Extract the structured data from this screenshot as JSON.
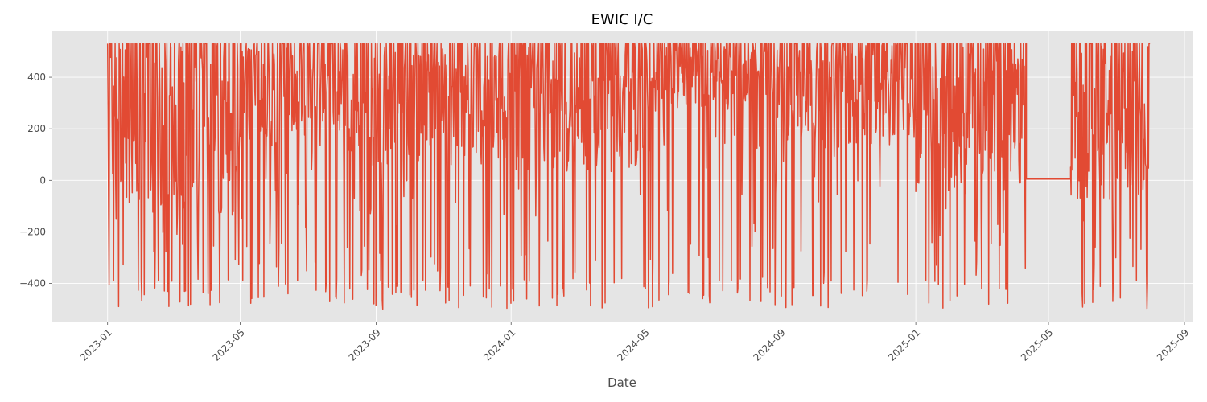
{
  "chart_data": {
    "type": "line",
    "title": "EWIC I/C",
    "xlabel": "Date",
    "ylabel": "",
    "x_type": "date",
    "xlim": [
      "2022-11-12",
      "2025-09-09"
    ],
    "ylim": [
      -548,
      578
    ],
    "x_ticks": [
      {
        "value": "2023-01-01",
        "label": "2023-01"
      },
      {
        "value": "2023-05-01",
        "label": "2023-05"
      },
      {
        "value": "2023-09-01",
        "label": "2023-09"
      },
      {
        "value": "2024-01-01",
        "label": "2024-01"
      },
      {
        "value": "2024-05-01",
        "label": "2024-05"
      },
      {
        "value": "2024-09-01",
        "label": "2024-09"
      },
      {
        "value": "2025-01-01",
        "label": "2025-01"
      },
      {
        "value": "2025-05-01",
        "label": "2025-05"
      },
      {
        "value": "2025-09-01",
        "label": "2025-09"
      }
    ],
    "y_ticks": [
      {
        "value": -400,
        "label": "−400"
      },
      {
        "value": -200,
        "label": "−200"
      },
      {
        "value": 0,
        "label": "0"
      },
      {
        "value": 200,
        "label": "200"
      },
      {
        "value": 400,
        "label": "400"
      }
    ],
    "grid": true,
    "colors": {
      "background": "#e5e5e5",
      "grid": "#ffffff",
      "line": "#e24a33"
    },
    "series": [
      {
        "name": "",
        "envelope": [
          {
            "start": "2023-01-01",
            "end": "2023-04-30",
            "high": 530,
            "low": -500,
            "mid": 60
          },
          {
            "start": "2023-05-01",
            "end": "2023-08-31",
            "high": 530,
            "low": -500,
            "mid": 230
          },
          {
            "start": "2023-09-01",
            "end": "2023-12-31",
            "high": 530,
            "low": -500,
            "mid": 200
          },
          {
            "start": "2024-01-01",
            "end": "2024-04-30",
            "high": 530,
            "low": -500,
            "mid": 180
          },
          {
            "start": "2024-05-01",
            "end": "2024-08-31",
            "high": 530,
            "low": -500,
            "mid": 350
          },
          {
            "start": "2024-09-01",
            "end": "2024-12-31",
            "high": 530,
            "low": -500,
            "mid": 250
          },
          {
            "start": "2025-01-01",
            "end": "2025-04-10",
            "high": 530,
            "low": -500,
            "mid": 120
          },
          {
            "start": "2025-04-11",
            "end": "2025-05-20",
            "high": 5,
            "low": 5,
            "mid": 5
          },
          {
            "start": "2025-05-21",
            "end": "2025-07-31",
            "high": 530,
            "low": -500,
            "mid": 100
          }
        ]
      }
    ]
  }
}
